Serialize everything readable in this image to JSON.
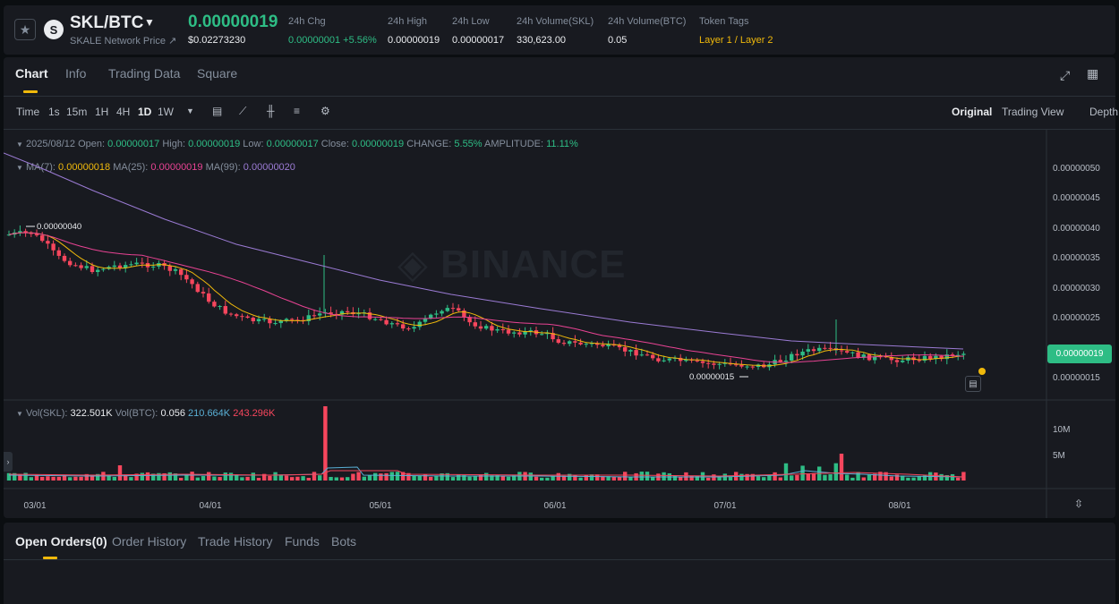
{
  "header": {
    "pair": "SKL/BTC",
    "subtitle": "SKALE Network Price",
    "last_price": "0.00000019",
    "usd_price": "$0.02273230",
    "stats": [
      {
        "label": "24h Chg",
        "value": "0.00000001 +5.56%",
        "color": "#2ebd85"
      },
      {
        "label": "24h High",
        "value": "0.00000019",
        "color": "#eaecef"
      },
      {
        "label": "24h Low",
        "value": "0.00000017",
        "color": "#eaecef"
      },
      {
        "label": "24h Volume(SKL)",
        "value": "330,623.00",
        "color": "#eaecef"
      },
      {
        "label": "24h Volume(BTC)",
        "value": "0.05",
        "color": "#eaecef"
      },
      {
        "label": "Token Tags",
        "value": "Layer 1 / Layer 2",
        "color": "#f0b90b"
      }
    ]
  },
  "tabs": [
    "Chart",
    "Info",
    "Trading Data",
    "Square"
  ],
  "active_tab": "Chart",
  "toolbar": {
    "intervals": [
      "Time",
      "1s",
      "15m",
      "1H",
      "4H",
      "1D",
      "1W"
    ],
    "active_interval": "1D",
    "views": [
      "Original",
      "Trading View",
      "Depth"
    ],
    "active_view": "Original"
  },
  "ohlc": {
    "date": "2025/08/12",
    "open_label": "Open:",
    "open": "0.00000017",
    "high_label": "High:",
    "high": "0.00000019",
    "low_label": "Low:",
    "low": "0.00000017",
    "close_label": "Close:",
    "close": "0.00000019",
    "change_label": "CHANGE:",
    "change": "5.55%",
    "amplitude_label": "AMPLITUDE:",
    "amplitude": "11.11%"
  },
  "ma": {
    "ma7_label": "MA(7):",
    "ma7": "0.00000018",
    "ma25_label": "MA(25):",
    "ma25": "0.00000019",
    "ma99_label": "MA(99):",
    "ma99": "0.00000020"
  },
  "volume_legend": {
    "vol_skl_label": "Vol(SKL):",
    "vol_skl": "322.501K",
    "vol_btc_label": "Vol(BTC):",
    "vol_btc": "0.056",
    "ma1": "210.664K",
    "ma2": "243.296K"
  },
  "watermark": "BINANCE",
  "current_price_tag": "0.00000019",
  "orders_tabs": [
    "Open Orders(0)",
    "Order History",
    "Trade History",
    "Funds",
    "Bots"
  ],
  "chart_data": {
    "type": "candlestick",
    "y_unit": "BTC",
    "price_axis": [
      "0.00000050",
      "0.00000045",
      "0.00000040",
      "0.00000035",
      "0.00000030",
      "0.00000025",
      "0.00000020",
      "0.00000015"
    ],
    "volume_axis": [
      "10M",
      "5M"
    ],
    "x_labels": [
      "03/01",
      "04/01",
      "05/01",
      "06/01",
      "07/01",
      "08/01"
    ],
    "annotations": [
      {
        "text": "0.00000040",
        "note": "period high"
      },
      {
        "text": "0.00000015",
        "note": "period low"
      }
    ],
    "series": [
      {
        "name": "MA(7)",
        "color": "#f0b90b"
      },
      {
        "name": "MA(25)",
        "color": "#e84393"
      },
      {
        "name": "MA(99)",
        "color": "#9b7bd4"
      }
    ],
    "colors": {
      "up": "#2ebd85",
      "down": "#f6465d"
    }
  }
}
